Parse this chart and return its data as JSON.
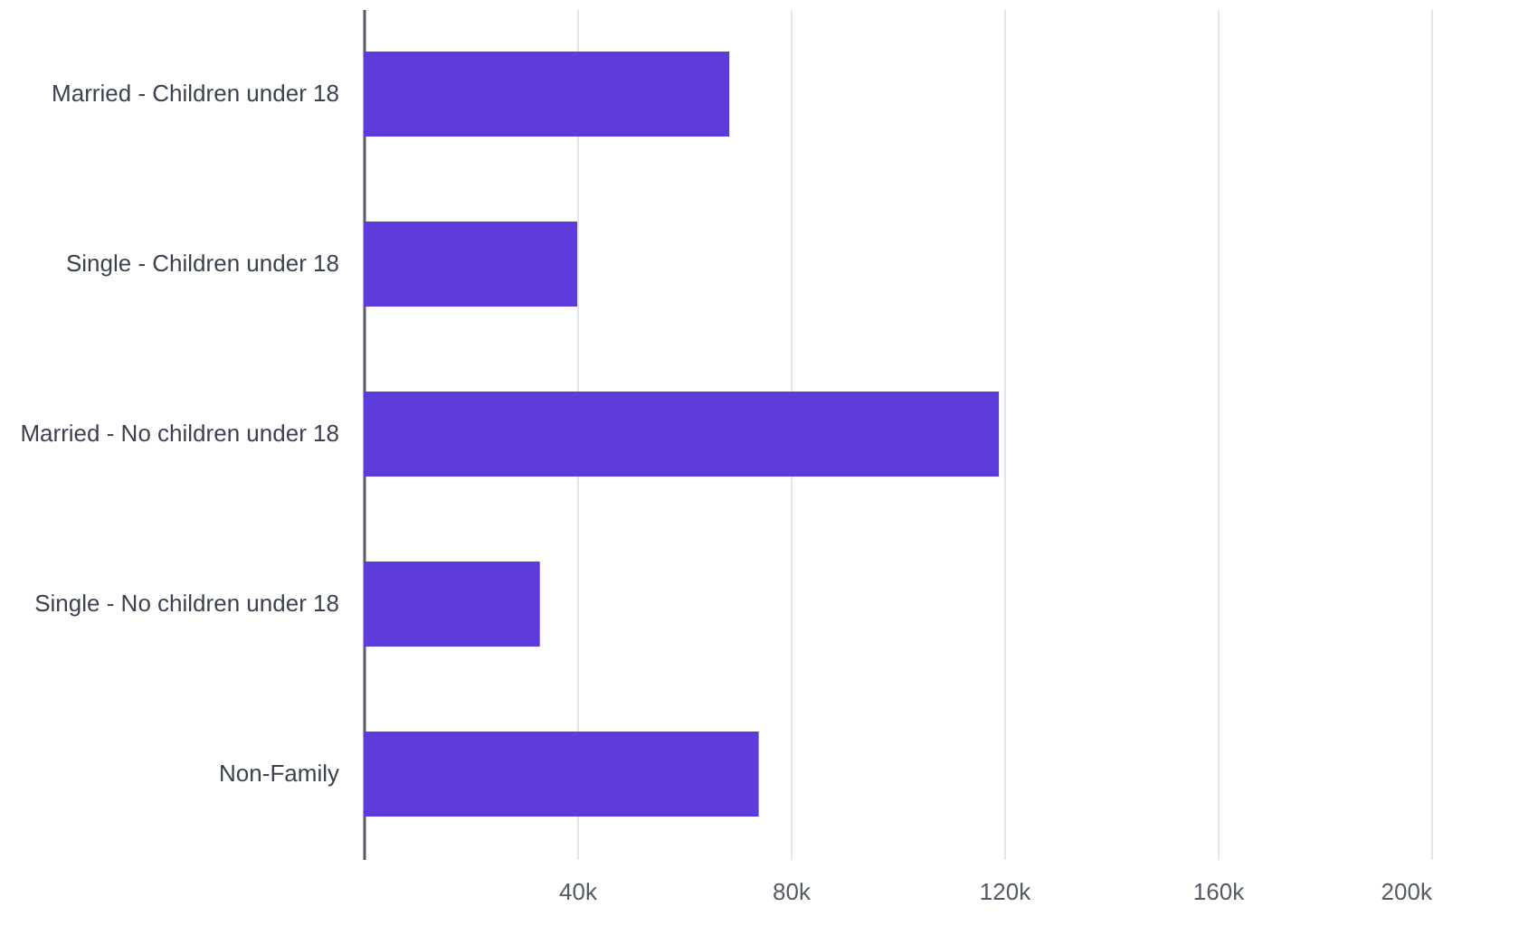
{
  "chart_data": {
    "type": "bar",
    "orientation": "horizontal",
    "categories": [
      "Married - Children under 18",
      "Single - Children under 18",
      "Married - No children under 18",
      "Single - No children under 18",
      "Non-Family"
    ],
    "values": [
      68500,
      40000,
      119000,
      33000,
      74000
    ],
    "color": "#5e3bdb",
    "xlim": [
      0,
      200000
    ],
    "xticks": [
      {
        "value": 0,
        "label": null
      },
      {
        "value": 40000,
        "label": "40k"
      },
      {
        "value": 80000,
        "label": "80k"
      },
      {
        "value": 120000,
        "label": "120k"
      },
      {
        "value": 160000,
        "label": "160k"
      },
      {
        "value": 200000,
        "label": "200k"
      }
    ],
    "grid": "x"
  }
}
